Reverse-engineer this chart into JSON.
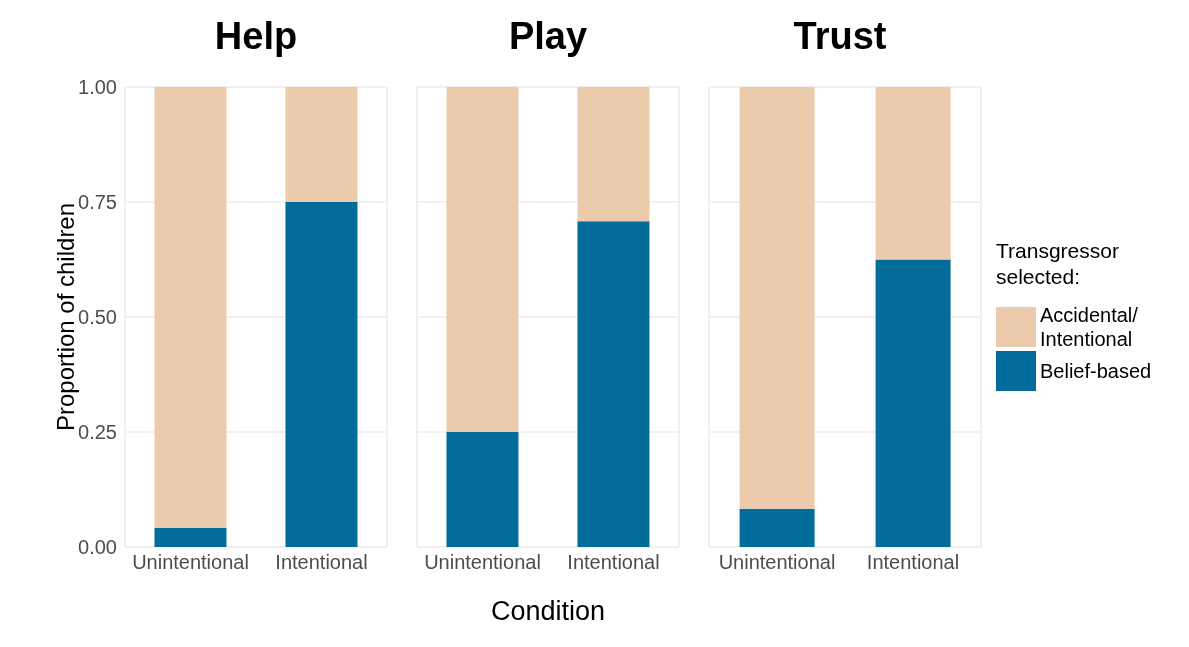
{
  "chart_data": [
    {
      "type": "bar",
      "title": "Help",
      "ylabel": "Proportion of children",
      "categories": [
        "Unintentional",
        "Intentional"
      ],
      "stacked": true,
      "ylim": [
        0,
        1
      ],
      "yticks": [
        {
          "value": 0,
          "label": "0.00"
        },
        {
          "value": 0.25,
          "label": "0.25"
        },
        {
          "value": 0.5,
          "label": "0.50"
        },
        {
          "value": 0.75,
          "label": "0.75"
        },
        {
          "value": 1,
          "label": "1.00"
        }
      ],
      "grid": true,
      "series": [
        {
          "color": "#046c9a",
          "values": [
            0.042,
            0.75
          ]
        },
        {
          "color": "#ebcbac",
          "values": [
            0.958,
            0.25
          ]
        }
      ]
    },
    {
      "type": "bar",
      "title": "Play",
      "xlabel": "Condition",
      "categories": [
        "Unintentional",
        "Intentional"
      ],
      "stacked": true,
      "ylim": [
        0,
        1
      ],
      "yticks": [
        0,
        0.25,
        0.5,
        0.75,
        1
      ],
      "grid": true,
      "tick_labels": "x",
      "series": [
        {
          "color": "#046c9a",
          "values": [
            0.25,
            0.708
          ]
        },
        {
          "color": "#ebcbac",
          "values": [
            0.75,
            0.292
          ]
        }
      ]
    },
    {
      "type": "bar",
      "title": "Trust",
      "categories": [
        "Unintentional",
        "Intentional"
      ],
      "stacked": true,
      "ylim": [
        0,
        1
      ],
      "yticks": [
        0,
        0.25,
        0.5,
        0.75,
        1
      ],
      "grid": true,
      "tick_labels": "x",
      "legend": "right",
      "legend_title": "Transgressor selected:",
      "series": [
        {
          "name": "Belief-based",
          "color": "#046c9a",
          "values": [
            0.083,
            0.625
          ]
        },
        {
          "name": "Accidental/ Intentional",
          "color": "#ebcbac",
          "values": [
            0.917,
            0.375
          ]
        }
      ]
    }
  ]
}
